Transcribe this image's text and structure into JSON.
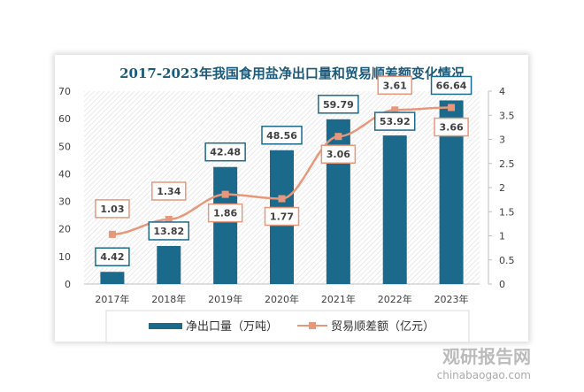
{
  "chart_data": {
    "type": "bar+line",
    "title": "2017-2023年我国食用盐净出口量和贸易顺差额变化情况",
    "categories": [
      "2017年",
      "2018年",
      "2019年",
      "2020年",
      "2021年",
      "2022年",
      "2023年"
    ],
    "series": [
      {
        "name": "净出口量（万吨）",
        "type": "bar",
        "axis": "left",
        "color": "#1b6a8c",
        "values": [
          4.42,
          13.82,
          42.48,
          48.56,
          59.79,
          53.92,
          66.64
        ],
        "labels": [
          "4.42",
          "13.82",
          "42.48",
          "48.56",
          "59.79",
          "53.92",
          "66.64"
        ]
      },
      {
        "name": "贸易顺差额（亿元）",
        "type": "line",
        "axis": "right",
        "color": "#e8977a",
        "values": [
          1.03,
          1.34,
          1.86,
          1.77,
          3.06,
          3.61,
          3.66
        ],
        "labels": [
          "1.03",
          "1.34",
          "1.86",
          "1.77",
          "3.06",
          "3.61",
          "3.66"
        ]
      }
    ],
    "y_left": {
      "lim": [
        0,
        70
      ],
      "ticks": [
        "0",
        "10",
        "20",
        "30",
        "40",
        "50",
        "60",
        "70"
      ]
    },
    "y_right": {
      "lim": [
        0,
        4
      ],
      "ticks": [
        "0",
        "0.5",
        "1",
        "1.5",
        "2",
        "2.5",
        "3",
        "3.5",
        "4"
      ]
    },
    "legend_position": "bottom",
    "grid": false
  },
  "watermark": {
    "brand": "观研报告网",
    "site": "chinabaogao.com"
  }
}
